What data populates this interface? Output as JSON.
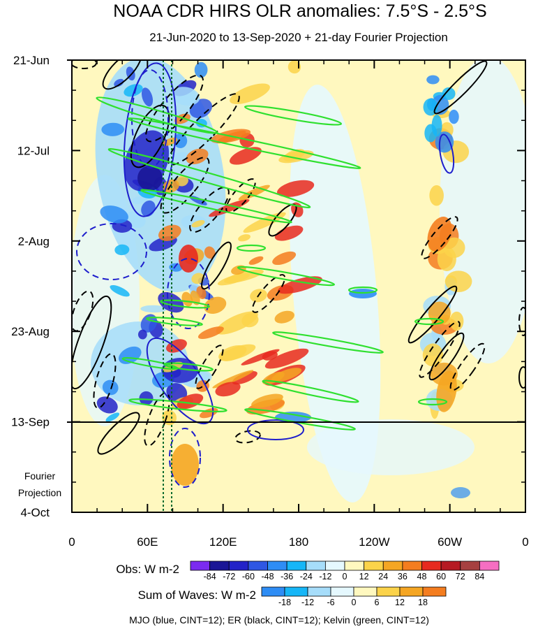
{
  "chart_data": {
    "type": "heatmap",
    "title": "NOAA CDR HIRS OLR anomalies: 7.5°S - 2.5°S",
    "subtitle": "21-Jun-2020 to 13-Sep-2020 + 21-day Fourier Projection",
    "y_ticks": [
      "21-Jun",
      "12-Jul",
      "2-Aug",
      "23-Aug",
      "13-Sep",
      "4-Oct"
    ],
    "x_ticks": [
      "0",
      "60E",
      "120E",
      "180",
      "120W",
      "60W",
      "0"
    ],
    "projection_label": [
      "Fourier",
      "Projection"
    ],
    "obs_colorbar": {
      "title": "Obs: W m-2",
      "levels": [
        -84,
        -72,
        -60,
        -48,
        -36,
        -24,
        -12,
        0,
        12,
        24,
        36,
        48,
        60,
        72,
        84
      ],
      "colors": [
        "#7b2bf0",
        "#1a1696",
        "#2323c8",
        "#2f57e3",
        "#2e8df5",
        "#16b6f7",
        "#a6ddfa",
        "#e5f8fe",
        "#fff8bf",
        "#fbd34a",
        "#f5a623",
        "#f47d1f",
        "#e72a1f",
        "#b61a23",
        "#a64040",
        "#f56ec2"
      ]
    },
    "waves_colorbar": {
      "title": "Sum of Waves: W m-2",
      "levels": [
        -18,
        -12,
        -6,
        0,
        6,
        12,
        18
      ],
      "colors": [
        "#2e8df5",
        "#16b6f7",
        "#a6ddfa",
        "#e5f8fe",
        "#fff8bf",
        "#fbd34a",
        "#f5a623",
        "#f47d1f"
      ]
    },
    "legend_text": "MJO (blue, CINT=12); ER (black, CINT=12); Kelvin (green, CINT=12)",
    "contour_colors": {
      "MJO": "#1d1dcc",
      "ER": "#000000",
      "Kelvin": "#2fe02f"
    },
    "reference_lines": {
      "horizontal_at": "13-Sep",
      "dotted_vertical_lon_east": [
        73,
        80
      ]
    },
    "grid": false
  }
}
